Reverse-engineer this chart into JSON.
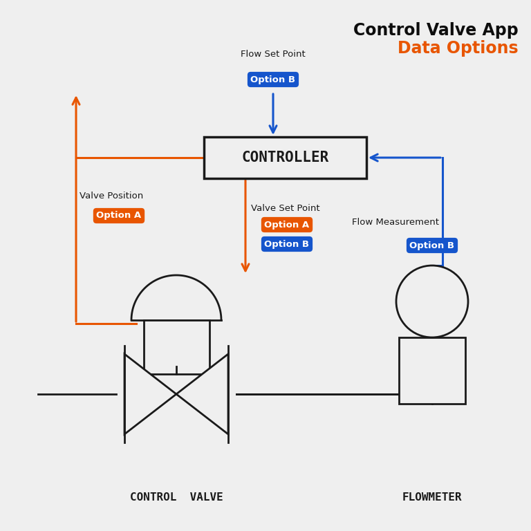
{
  "bg_color": "#efefef",
  "title_line1": "Control Valve App",
  "title_line2": "Data Options",
  "title_color1": "#0d0d0d",
  "title_color2": "#e85500",
  "orange_color": "#e85500",
  "blue_color": "#1555cc",
  "dark_color": "#1a1a1a",
  "white_color": "#ffffff",
  "controller_label": "CONTROLLER",
  "control_valve_label": "CONTROL  VALVE",
  "flowmeter_label": "FLOWMETER",
  "lw_main": 2.2,
  "lw_sym": 2.0,
  "fig_size": 7.68,
  "dpi": 100
}
